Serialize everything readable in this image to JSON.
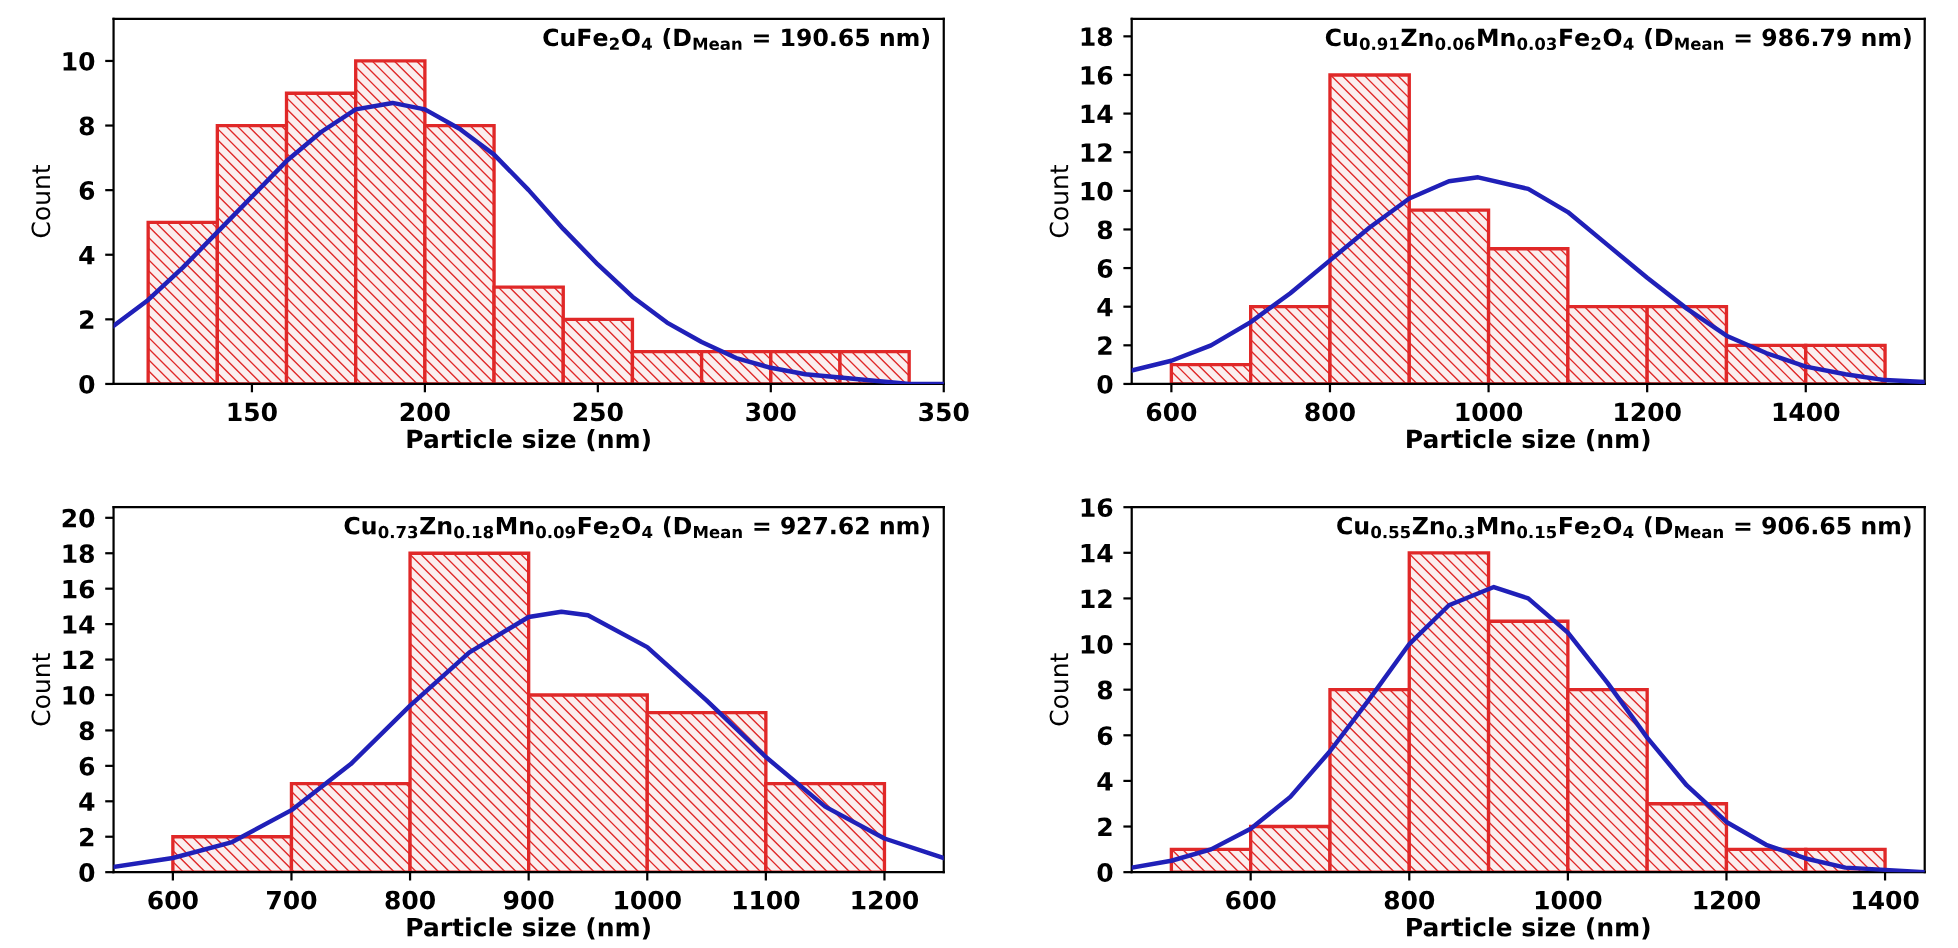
{
  "chart_data": [
    {
      "type": "histogram",
      "annotations": [
        "CuFe$_{2}$O$_{4}$ (D$_{Mean}$ = 190.65 nm)"
      ],
      "xlabel": "Particle size (nm)",
      "ylabel": "Count",
      "bins": [
        120,
        140,
        160,
        180,
        200,
        220,
        240,
        260,
        280,
        300,
        320,
        340
      ],
      "values": [
        5,
        8,
        9,
        10,
        8,
        3,
        2,
        1,
        1,
        1,
        1
      ],
      "color": "#e02828",
      "series": [
        {
          "type": "line",
          "color": "#2020b8",
          "x": [
            110,
            120,
            130,
            140,
            150,
            160,
            170,
            180,
            190.65,
            200,
            210,
            220,
            230,
            240,
            250,
            260,
            270,
            280,
            290,
            300,
            310,
            320,
            330,
            340,
            350
          ],
          "values": [
            1.8,
            2.6,
            3.6,
            4.7,
            5.8,
            6.9,
            7.8,
            8.5,
            8.7,
            8.5,
            7.9,
            7.1,
            6.0,
            4.8,
            3.7,
            2.7,
            1.9,
            1.3,
            0.8,
            0.5,
            0.3,
            0.2,
            0.1,
            0.0,
            0.0
          ]
        }
      ],
      "xlim": [
        110,
        350
      ],
      "xticks": [
        150,
        200,
        250,
        300,
        350
      ],
      "ylim": [
        0,
        11.3
      ],
      "yticks": [
        0,
        2,
        4,
        6,
        8,
        10
      ]
    },
    {
      "type": "histogram",
      "annotations": [
        "Cu$_{0.91}$Zn$_{0.06}$Mn$_{0.03}$Fe$_{2}$O$_{4}$ (D$_{Mean}$ = 986.79 nm)"
      ],
      "xlabel": "Particle size (nm)",
      "ylabel": "Count",
      "bins": [
        600,
        700,
        800,
        900,
        1000,
        1100,
        1200,
        1300,
        1400,
        1500
      ],
      "values": [
        1,
        4,
        16,
        9,
        7,
        4,
        4,
        2,
        2
      ],
      "color": "#e02828",
      "series": [
        {
          "type": "line",
          "color": "#2020b8",
          "x": [
            550,
            600,
            650,
            700,
            750,
            800,
            850,
            900,
            950,
            986.79,
            1050,
            1100,
            1150,
            1200,
            1250,
            1300,
            1350,
            1400,
            1450,
            1500,
            1550
          ],
          "values": [
            0.7,
            1.2,
            2.0,
            3.2,
            4.7,
            6.4,
            8.1,
            9.6,
            10.5,
            10.7,
            10.1,
            8.9,
            7.2,
            5.5,
            3.9,
            2.5,
            1.6,
            0.9,
            0.5,
            0.2,
            0.1
          ]
        }
      ],
      "xlim": [
        550,
        1550
      ],
      "xticks": [
        600,
        800,
        1000,
        1200,
        1400
      ],
      "ylim": [
        0,
        18.9
      ],
      "yticks": [
        0,
        2,
        4,
        6,
        8,
        10,
        12,
        14,
        16,
        18
      ]
    },
    {
      "type": "histogram",
      "annotations": [
        "Cu$_{0.73}$Zn$_{0.18}$Mn$_{0.09}$Fe$_{2}$O$_{4}$ (D$_{Mean}$ = 927.62 nm)"
      ],
      "xlabel": "Particle size (nm)",
      "ylabel": "Count",
      "bins": [
        600,
        700,
        800,
        900,
        1000,
        1100,
        1200
      ],
      "values": [
        2,
        5,
        18,
        10,
        9,
        5
      ],
      "color": "#e02828",
      "series": [
        {
          "type": "line",
          "color": "#2020b8",
          "x": [
            550,
            600,
            650,
            700,
            750,
            800,
            850,
            900,
            927.62,
            950,
            1000,
            1050,
            1100,
            1150,
            1200,
            1250
          ],
          "values": [
            0.3,
            0.8,
            1.7,
            3.5,
            6.1,
            9.4,
            12.4,
            14.4,
            14.7,
            14.5,
            12.7,
            9.7,
            6.5,
            3.7,
            1.9,
            0.8
          ]
        }
      ],
      "xlim": [
        550,
        1250
      ],
      "xticks": [
        600,
        700,
        800,
        900,
        1000,
        1100,
        1200
      ],
      "ylim": [
        0,
        20.6
      ],
      "yticks": [
        0,
        2,
        4,
        6,
        8,
        10,
        12,
        14,
        16,
        18,
        20
      ]
    },
    {
      "type": "histogram",
      "annotations": [
        "Cu$_{0.55}$Zn$_{0.3}$Mn$_{0.15}$Fe$_{2}$O$_{4}$ (D$_{Mean}$ = 906.65 nm)"
      ],
      "xlabel": "Particle size (nm)",
      "ylabel": "Count",
      "bins": [
        500,
        600,
        700,
        800,
        900,
        1000,
        1100,
        1200,
        1300,
        1400
      ],
      "values": [
        1,
        2,
        8,
        14,
        11,
        8,
        3,
        1,
        1
      ],
      "color": "#e02828",
      "series": [
        {
          "type": "line",
          "color": "#2020b8",
          "x": [
            450,
            500,
            550,
            600,
            650,
            700,
            750,
            800,
            850,
            906.65,
            950,
            1000,
            1050,
            1100,
            1150,
            1200,
            1250,
            1300,
            1350,
            1400,
            1450
          ],
          "values": [
            0.2,
            0.5,
            1.0,
            1.9,
            3.3,
            5.3,
            7.6,
            10.0,
            11.7,
            12.5,
            12.0,
            10.5,
            8.3,
            5.9,
            3.8,
            2.2,
            1.2,
            0.6,
            0.2,
            0.1,
            0.0
          ]
        }
      ],
      "xlim": [
        450,
        1450
      ],
      "xticks": [
        600,
        800,
        1000,
        1200,
        1400
      ],
      "ylim": [
        0,
        16
      ],
      "yticks": [
        0,
        2,
        4,
        6,
        8,
        10,
        12,
        14,
        16
      ]
    }
  ]
}
